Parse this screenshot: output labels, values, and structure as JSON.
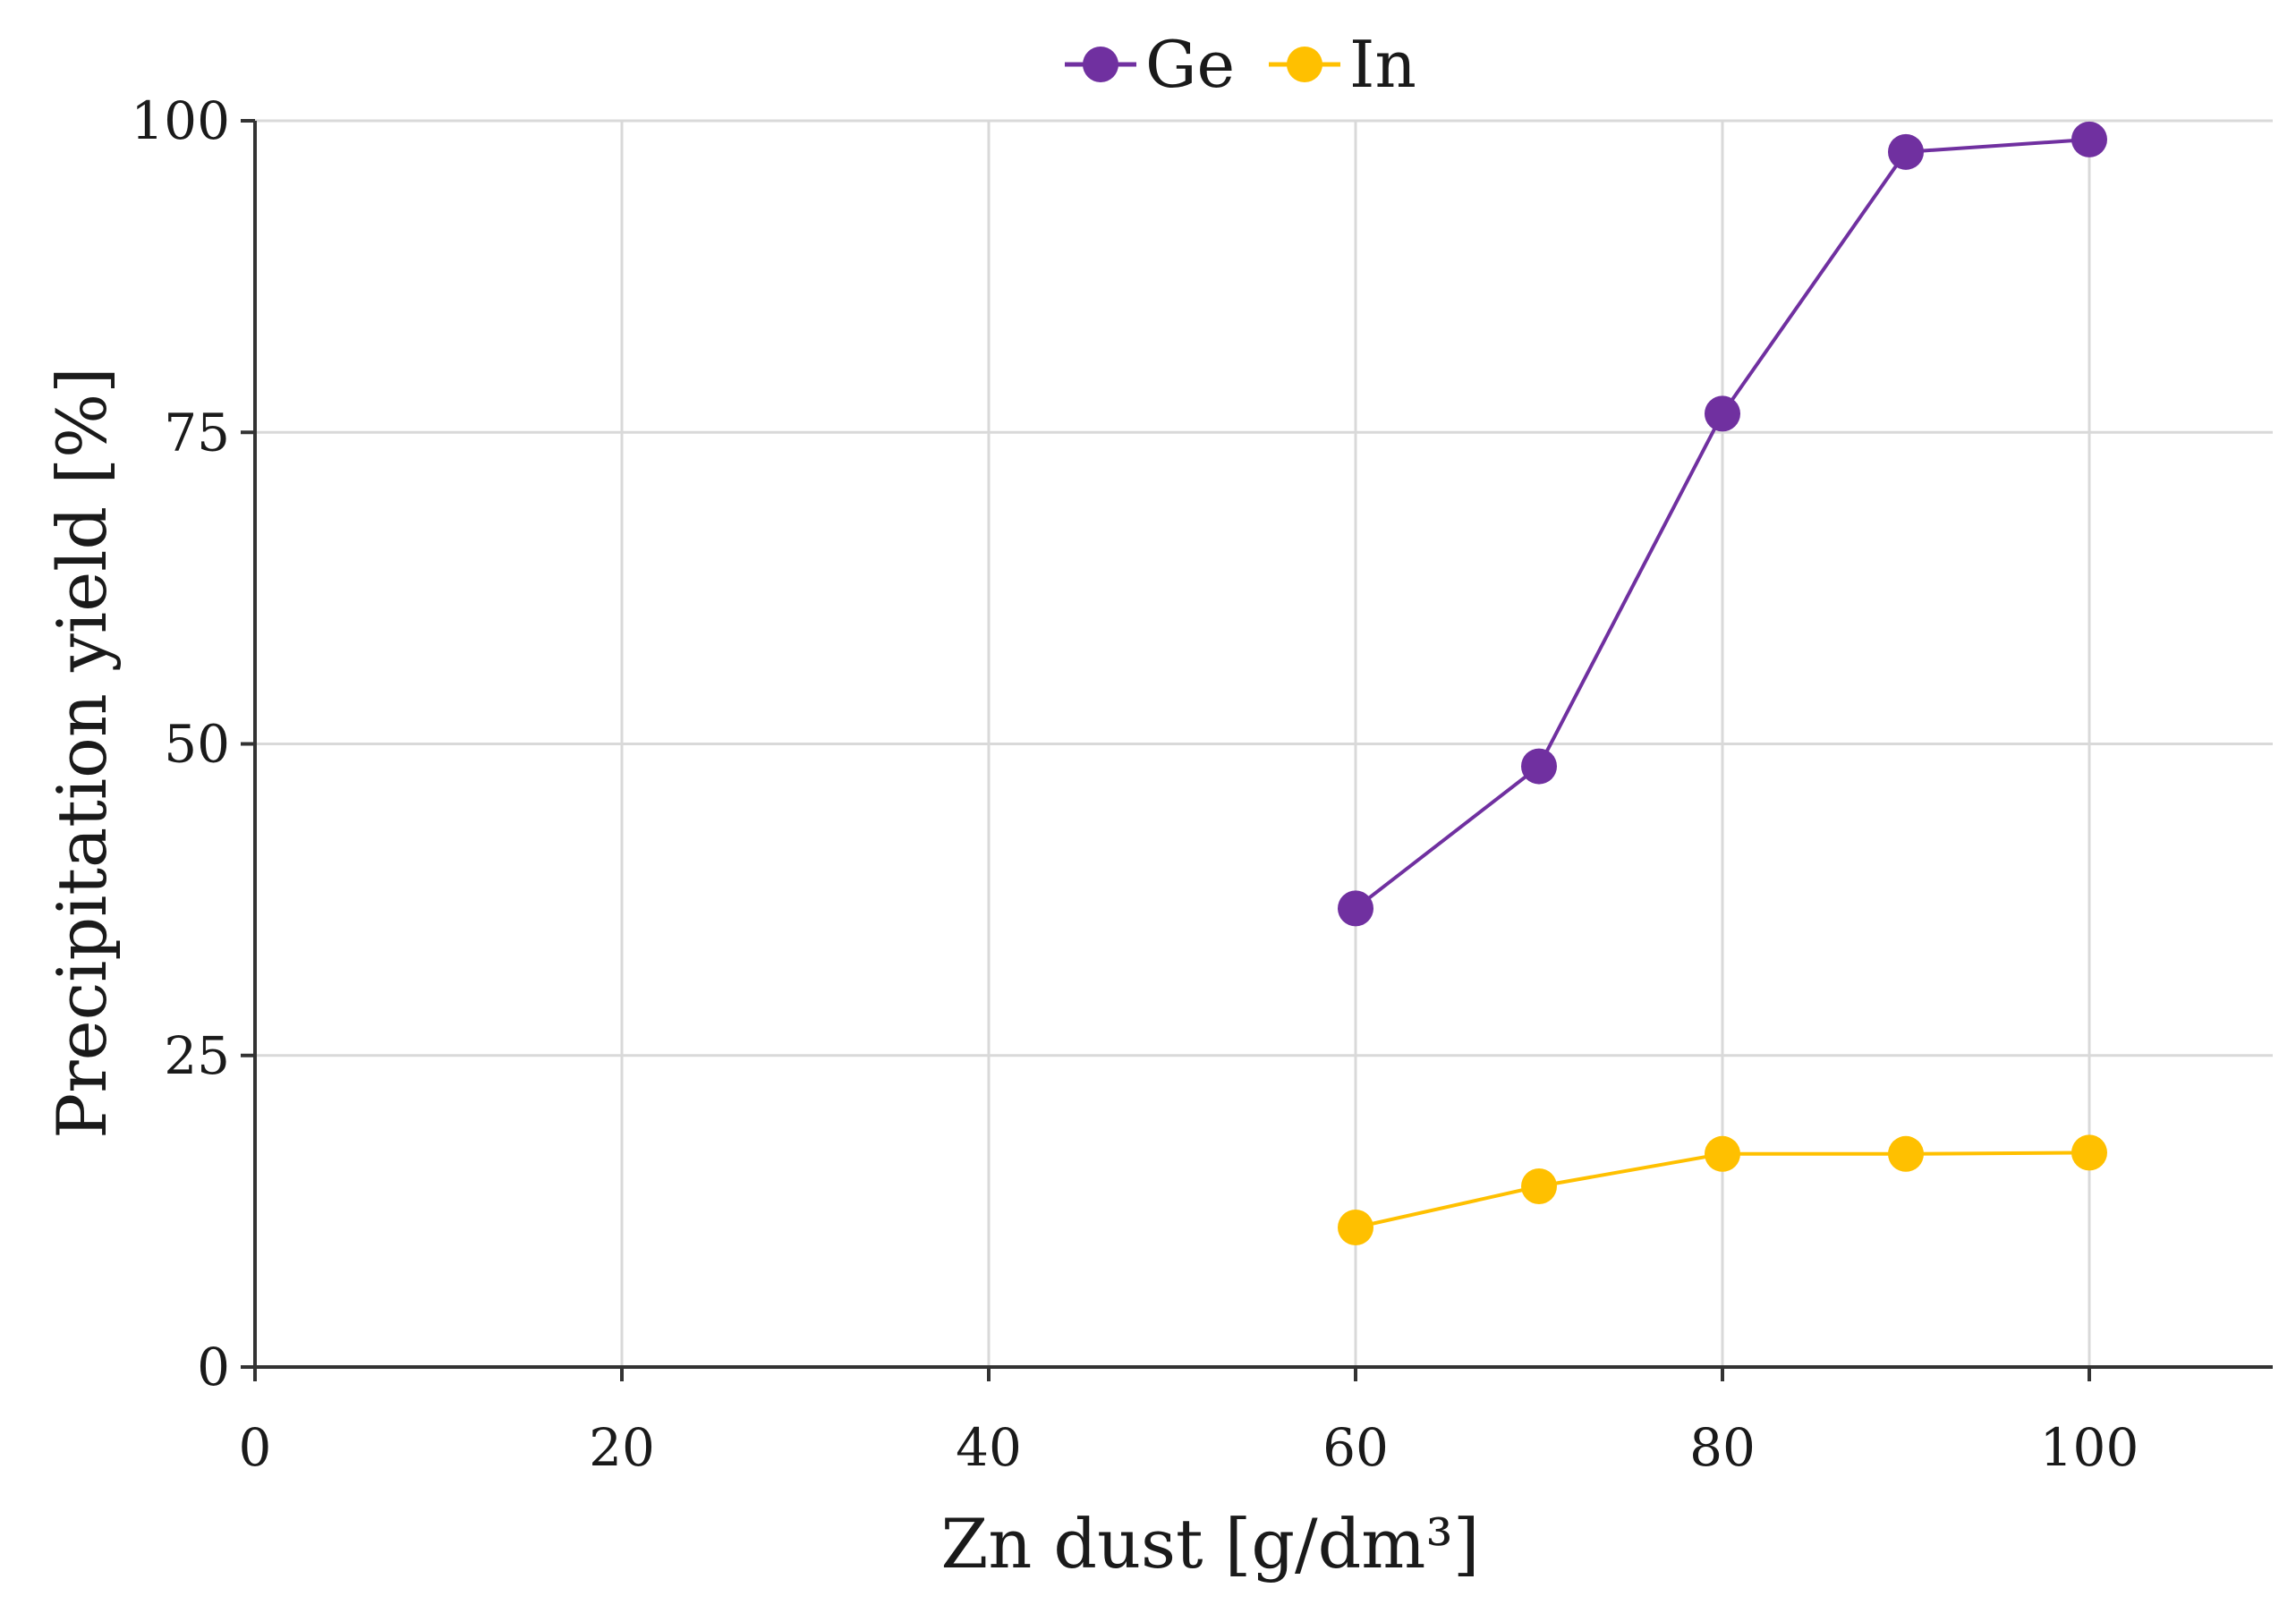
{
  "chart_data": {
    "type": "line",
    "xlabel": "Zn dust [g/dm³]",
    "ylabel": "Precipitation yield [%]",
    "xlim": [
      0,
      110
    ],
    "ylim": [
      0,
      100
    ],
    "x_ticks": [
      0,
      20,
      40,
      60,
      80,
      100
    ],
    "y_ticks": [
      0,
      25,
      50,
      75,
      100
    ],
    "grid": true,
    "legend_position": "top-center",
    "x": [
      60,
      70,
      80,
      90,
      100
    ],
    "series": [
      {
        "name": "Ge",
        "color": "#7030a0",
        "values": [
          36.8,
          48.2,
          76.5,
          97.5,
          98.5
        ]
      },
      {
        "name": "In",
        "color": "#ffc000",
        "values": [
          11.2,
          14.5,
          17.1,
          17.1,
          17.2
        ]
      }
    ]
  }
}
